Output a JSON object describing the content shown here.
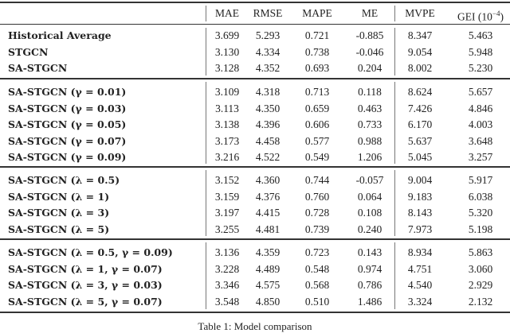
{
  "table": {
    "columns": [
      "MAE",
      "RMSE",
      "MAPE",
      "ME",
      "MVPE",
      "GEI (10",
      "−4",
      ")"
    ],
    "groups": [
      [
        {
          "label": "Historical Average",
          "values": [
            "3.699",
            "5.293",
            "0.721",
            "-0.885",
            "8.347",
            "5.463"
          ]
        },
        {
          "label": "STGCN",
          "values": [
            "3.130",
            "4.334",
            "0.738",
            "-0.046",
            "9.054",
            "5.948"
          ]
        },
        {
          "label": "SA-STGCN",
          "values": [
            "3.128",
            "4.352",
            "0.693",
            "0.204",
            "8.002",
            "5.230"
          ]
        }
      ],
      [
        {
          "label": "SA-STGCN (γ = 0.01)",
          "values": [
            "3.109",
            "4.318",
            "0.713",
            "0.118",
            "8.624",
            "5.657"
          ]
        },
        {
          "label": "SA-STGCN (γ = 0.03)",
          "values": [
            "3.113",
            "4.350",
            "0.659",
            "0.463",
            "7.426",
            "4.846"
          ]
        },
        {
          "label": "SA-STGCN (γ = 0.05)",
          "values": [
            "3.138",
            "4.396",
            "0.606",
            "0.733",
            "6.170",
            "4.003"
          ]
        },
        {
          "label": "SA-STGCN (γ = 0.07)",
          "values": [
            "3.173",
            "4.458",
            "0.577",
            "0.988",
            "5.637",
            "3.648"
          ]
        },
        {
          "label": "SA-STGCN (γ = 0.09)",
          "values": [
            "3.216",
            "4.522",
            "0.549",
            "1.206",
            "5.045",
            "3.257"
          ]
        }
      ],
      [
        {
          "label": "SA-STGCN (λ = 0.5)",
          "values": [
            "3.152",
            "4.360",
            "0.744",
            "-0.057",
            "9.004",
            "5.917"
          ]
        },
        {
          "label": "SA-STGCN (λ = 1)",
          "values": [
            "3.159",
            "4.376",
            "0.760",
            "0.064",
            "9.183",
            "6.038"
          ]
        },
        {
          "label": "SA-STGCN (λ = 3)",
          "values": [
            "3.197",
            "4.415",
            "0.728",
            "0.108",
            "8.143",
            "5.320"
          ]
        },
        {
          "label": "SA-STGCN (λ = 5)",
          "values": [
            "3.255",
            "4.481",
            "0.739",
            "0.240",
            "7.973",
            "5.198"
          ]
        }
      ],
      [
        {
          "label": "SA-STGCN (λ = 0.5, γ = 0.09)",
          "values": [
            "3.136",
            "4.359",
            "0.723",
            "0.143",
            "8.934",
            "5.863"
          ]
        },
        {
          "label": "SA-STGCN (λ = 1, γ = 0.07)",
          "values": [
            "3.228",
            "4.489",
            "0.548",
            "0.974",
            "4.751",
            "3.060"
          ]
        },
        {
          "label": "SA-STGCN (λ = 3, γ = 0.03)",
          "values": [
            "3.346",
            "4.575",
            "0.568",
            "0.786",
            "4.540",
            "2.929"
          ]
        },
        {
          "label": "SA-STGCN (λ = 5, γ = 0.07)",
          "values": [
            "3.548",
            "4.850",
            "0.510",
            "1.486",
            "3.324",
            "2.132"
          ]
        }
      ]
    ]
  },
  "caption": "Table 1: Model comparison"
}
